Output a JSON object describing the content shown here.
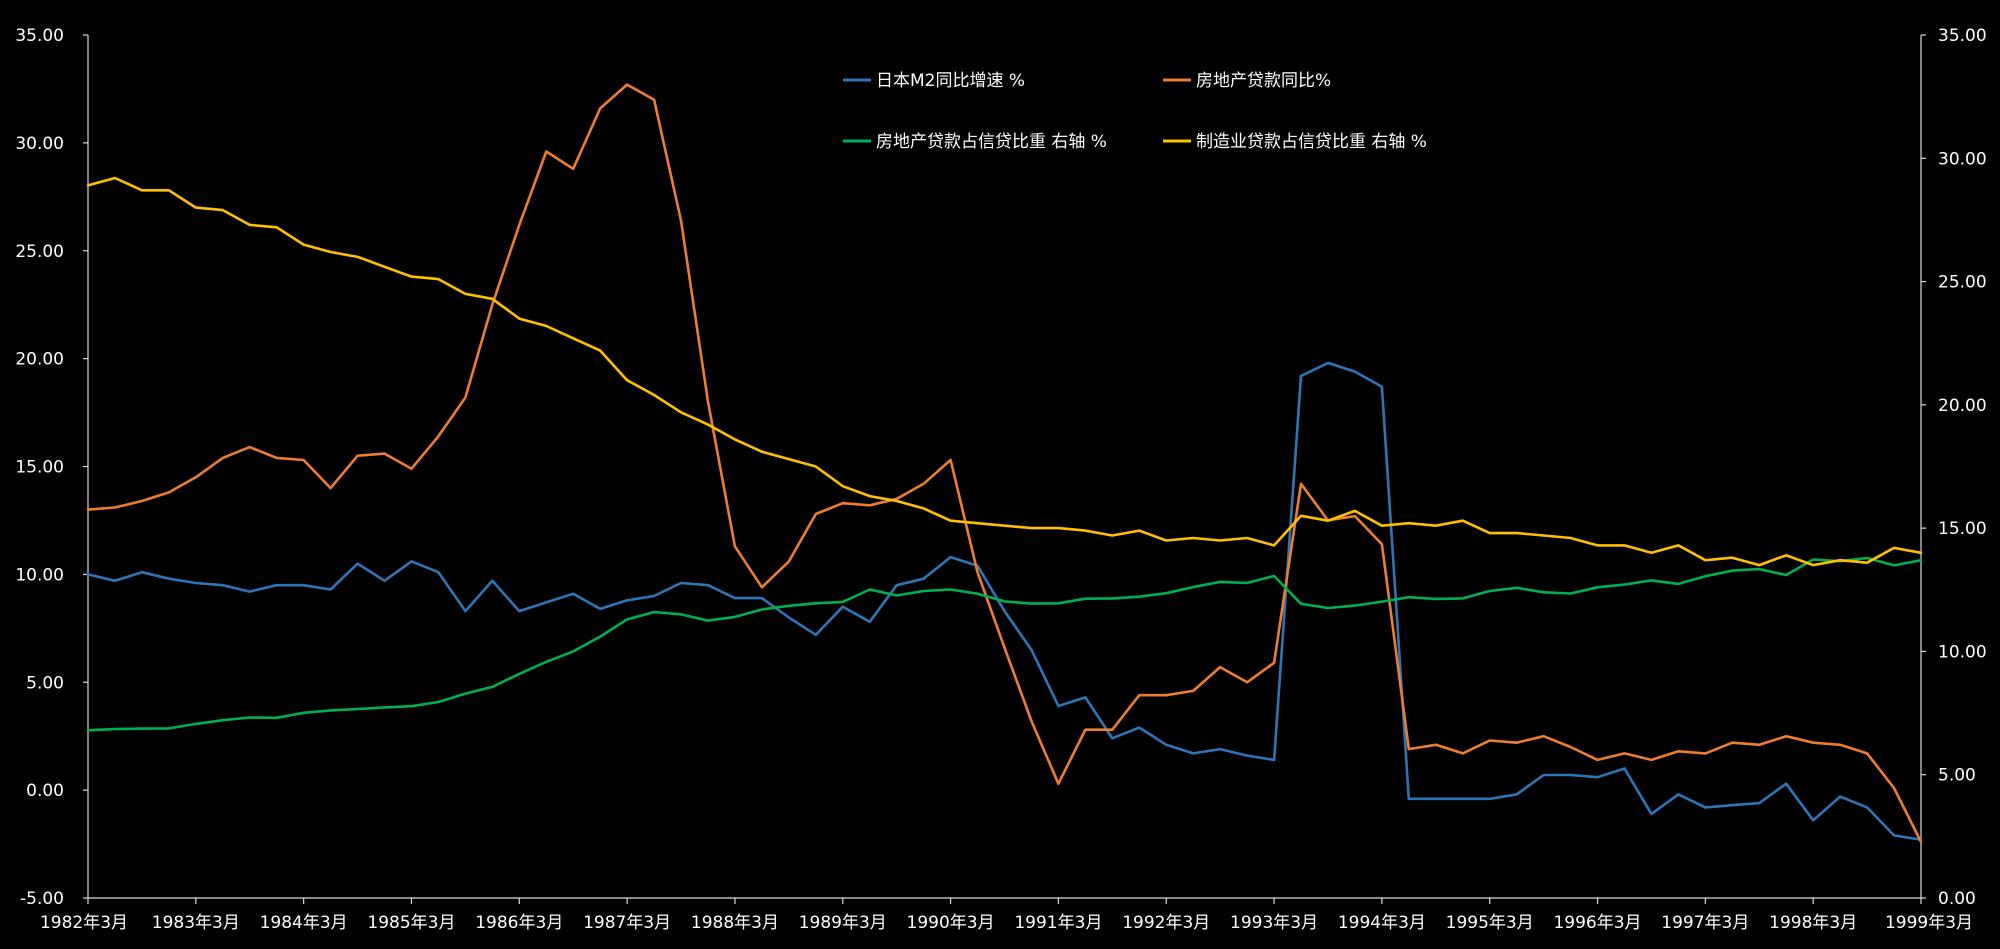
{
  "chart_data": {
    "type": "line",
    "left_axis": {
      "min": -5,
      "max": 35,
      "ticks": [
        -5,
        0,
        5,
        10,
        15,
        20,
        25,
        30,
        35
      ],
      "tick_labels": [
        "-5.00",
        "0.00",
        "5.00",
        "10.00",
        "15.00",
        "20.00",
        "25.00",
        "30.00",
        "35.00"
      ]
    },
    "right_axis": {
      "min": 0,
      "max": 35,
      "ticks": [
        0,
        5,
        10,
        15,
        20,
        25,
        30,
        35
      ],
      "tick_labels": [
        "0.00",
        "5.00",
        "10.00",
        "15.00",
        "20.00",
        "25.00",
        "30.00",
        "35.00"
      ]
    },
    "x_tick_labels": [
      "1982年3月",
      "1983年3月",
      "1984年3月",
      "1985年3月",
      "1986年3月",
      "1987年3月",
      "1988年3月",
      "1989年3月",
      "1990年3月",
      "1991年3月",
      "1992年3月",
      "1993年3月",
      "1994年3月",
      "1995年3月",
      "1996年3月",
      "1997年3月",
      "1998年3月",
      "1999年3月"
    ],
    "x_start": "1982年3月",
    "x_step": "quarterly",
    "grid": false,
    "legend_position": "top-center",
    "series": [
      {
        "name": "日本M2同比增速 %",
        "axis": "left",
        "color": "#2E75B6",
        "values": [
          10.0,
          9.7,
          10.1,
          9.8,
          9.6,
          9.5,
          9.2,
          9.5,
          9.5,
          9.3,
          10.5,
          9.7,
          10.6,
          10.1,
          8.3,
          9.7,
          8.3,
          8.7,
          9.1,
          8.4,
          8.8,
          9.0,
          9.6,
          9.5,
          8.9,
          8.9,
          8.0,
          7.2,
          8.5,
          7.8,
          9.5,
          9.8,
          10.8,
          10.4,
          8.3,
          6.5,
          3.9,
          4.3,
          2.4,
          2.9,
          2.1,
          1.7,
          1.9,
          1.6,
          1.4,
          19.2,
          19.8,
          19.4,
          18.7,
          -0.4,
          -0.4,
          -0.4,
          -0.4,
          -0.2,
          0.7,
          0.7,
          0.6,
          1.0,
          -1.1,
          -0.2,
          -0.8,
          -0.7,
          -0.6,
          0.3,
          -1.4,
          -0.3,
          -0.8,
          -2.1,
          -2.3
        ]
      },
      {
        "name": "房地产贷款同比%",
        "axis": "left",
        "color": "#ED7D31",
        "values": [
          13.0,
          13.1,
          13.4,
          13.8,
          14.5,
          15.4,
          15.9,
          15.4,
          15.3,
          14.0,
          15.5,
          15.6,
          14.9,
          16.4,
          18.2,
          22.5,
          26.2,
          29.6,
          28.8,
          31.6,
          32.7,
          32.0,
          26.4,
          18.0,
          11.3,
          9.4,
          10.6,
          12.8,
          13.3,
          13.2,
          13.5,
          14.2,
          15.3,
          10.1,
          6.6,
          3.2,
          0.3,
          2.8,
          2.8,
          4.4,
          4.4,
          4.6,
          5.7,
          5.0,
          5.9,
          14.2,
          12.5,
          12.7,
          11.4,
          1.9,
          2.1,
          1.7,
          2.3,
          2.2,
          2.5,
          2.0,
          1.4,
          1.7,
          1.4,
          1.8,
          1.7,
          2.2,
          2.1,
          2.5,
          2.2,
          2.1,
          1.7,
          0.1,
          -2.4
        ]
      },
      {
        "name": "房地产贷款占信贷比重 右轴 %",
        "axis": "right",
        "color": "#00B050",
        "values": [
          6.8,
          6.85,
          6.87,
          6.88,
          7.06,
          7.21,
          7.32,
          7.31,
          7.51,
          7.61,
          7.66,
          7.73,
          7.78,
          7.95,
          8.29,
          8.56,
          9.09,
          9.58,
          10.0,
          10.6,
          11.3,
          11.6,
          11.5,
          11.25,
          11.4,
          11.7,
          11.85,
          11.95,
          12.01,
          12.51,
          12.27,
          12.45,
          12.51,
          12.34,
          12.03,
          11.94,
          11.95,
          12.14,
          12.15,
          12.22,
          12.36,
          12.61,
          12.82,
          12.78,
          13.06,
          11.93,
          11.76,
          11.86,
          12.02,
          12.2,
          12.13,
          12.15,
          12.45,
          12.58,
          12.4,
          12.35,
          12.6,
          12.71,
          12.88,
          12.74,
          13.05,
          13.28,
          13.34,
          13.1,
          13.73,
          13.66,
          13.79,
          13.49,
          13.7
        ]
      },
      {
        "name": "制造业贷款占信贷比重 右轴 %",
        "axis": "right",
        "color": "#FFC000",
        "values": [
          28.9,
          29.2,
          28.7,
          28.7,
          28.0,
          27.9,
          27.3,
          27.2,
          26.5,
          26.2,
          26.0,
          25.6,
          25.2,
          25.1,
          24.5,
          24.3,
          23.5,
          23.2,
          22.7,
          22.2,
          21.0,
          20.4,
          19.7,
          19.2,
          18.6,
          18.1,
          17.8,
          17.5,
          16.7,
          16.3,
          16.1,
          15.8,
          15.3,
          15.2,
          15.1,
          15.0,
          15.0,
          14.9,
          14.7,
          14.9,
          14.5,
          14.6,
          14.5,
          14.6,
          14.3,
          15.5,
          15.3,
          15.7,
          15.1,
          15.2,
          15.1,
          15.3,
          14.8,
          14.8,
          14.7,
          14.6,
          14.3,
          14.3,
          14.0,
          14.3,
          13.7,
          13.8,
          13.5,
          13.9,
          13.5,
          13.7,
          13.6,
          14.2,
          14.0
        ]
      }
    ]
  }
}
